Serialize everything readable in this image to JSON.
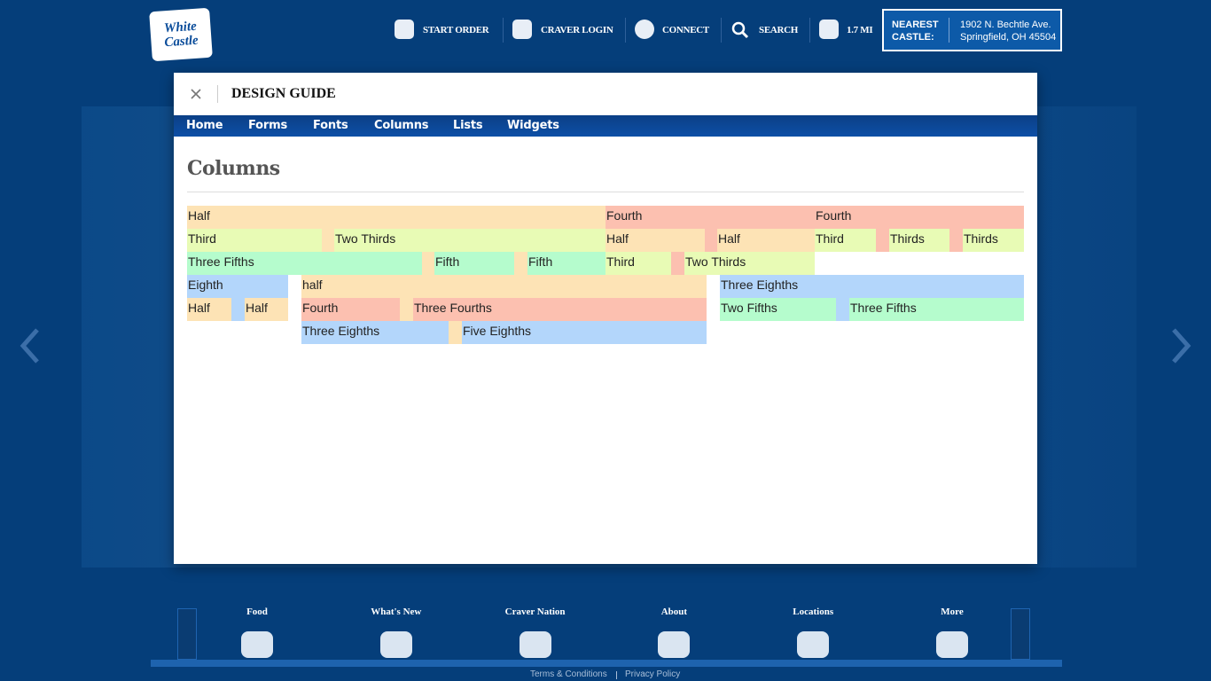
{
  "header": {
    "logo": [
      "White",
      "Castle"
    ],
    "nav": [
      "START ORDER",
      "CRAVER LOGIN",
      "CONNECT",
      "SEARCH",
      "1.7 MI"
    ],
    "nearest": {
      "label": [
        "NEAREST",
        "CASTLE:"
      ],
      "address": [
        "1902 N. Bechtle Ave.",
        "Springfield, OH 45504"
      ]
    }
  },
  "modal": {
    "title": "DESIGN GUIDE",
    "tabs": [
      "Home",
      "Forms",
      "Fonts",
      "Columns",
      "Lists",
      "Widgets"
    ],
    "heading": "Columns",
    "blocks": [
      "Half",
      "Fourth",
      "Fourth",
      "Third",
      "Two Thirds",
      "Half",
      "Half",
      "Third",
      "Thirds",
      "Thirds",
      "Three Fifths",
      "Fifth",
      "Fifth",
      "Third",
      "Two Thirds",
      "Eighth",
      "half",
      "Three Eighths",
      "Half",
      "Half",
      "Fourth",
      "Three Fourths",
      "Two Fifths",
      "Three Fifths",
      "Three Eighths",
      "Five Eighths"
    ]
  },
  "footer": {
    "nav": [
      "Food",
      "What's New",
      "Craver Nation",
      "About",
      "Locations",
      "More"
    ],
    "links": [
      "Terms & Conditions",
      "Privacy Policy"
    ]
  }
}
